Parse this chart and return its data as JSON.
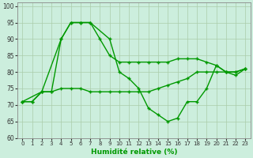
{
  "xlabel": "Humidité relative (%)",
  "bg_color": "#cceedd",
  "grid_color": "#aaccaa",
  "line_color": "#009900",
  "xlim": [
    -0.5,
    23.5
  ],
  "ylim": [
    60,
    101
  ],
  "yticks": [
    60,
    65,
    70,
    75,
    80,
    85,
    90,
    95,
    100
  ],
  "xticks": [
    0,
    1,
    2,
    3,
    4,
    5,
    6,
    7,
    8,
    9,
    10,
    11,
    12,
    13,
    14,
    15,
    16,
    17,
    18,
    19,
    20,
    21,
    22,
    23
  ],
  "series": [
    {
      "x": [
        0,
        1,
        2,
        3,
        4,
        5,
        6,
        7,
        8,
        9,
        10,
        11,
        12,
        13,
        14,
        15,
        16,
        17,
        18,
        19,
        20,
        21,
        22,
        23
      ],
      "y": [
        71,
        71,
        74,
        74,
        90,
        95,
        95,
        95,
        90,
        85,
        83,
        83,
        83,
        83,
        83,
        83,
        84,
        84,
        84,
        83,
        82,
        80,
        80,
        81
      ]
    },
    {
      "x": [
        0,
        1,
        2,
        3,
        4,
        5,
        6,
        7,
        8,
        9,
        10,
        11,
        12,
        13,
        14,
        15,
        16,
        17,
        18,
        19,
        20,
        21,
        22,
        23
      ],
      "y": [
        71,
        71,
        74,
        74,
        75,
        75,
        75,
        74,
        74,
        74,
        74,
        74,
        74,
        74,
        75,
        76,
        77,
        78,
        80,
        80,
        80,
        80,
        80,
        81
      ]
    },
    {
      "x": [
        0,
        2,
        4,
        5,
        6,
        7,
        9,
        10,
        11,
        12,
        13,
        14,
        15,
        16,
        17,
        18,
        19,
        20,
        21,
        22,
        23
      ],
      "y": [
        71,
        74,
        90,
        95,
        95,
        95,
        90,
        80,
        78,
        75,
        69,
        67,
        65,
        66,
        71,
        71,
        75,
        82,
        80,
        79,
        81
      ]
    }
  ]
}
